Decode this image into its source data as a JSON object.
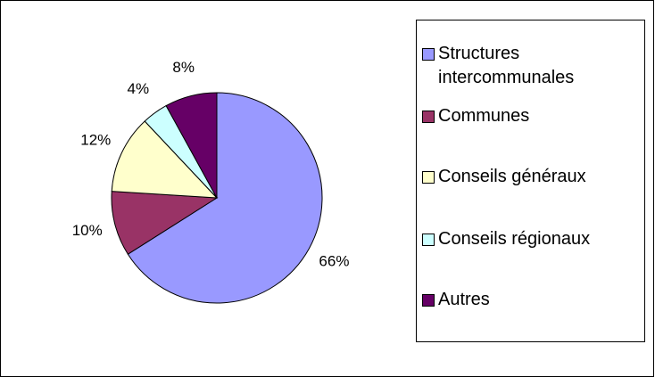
{
  "chart_data": {
    "type": "pie",
    "categories": [
      "Structures intercommunales",
      "Communes",
      "Conseils généraux",
      "Conseils régionaux",
      "Autres"
    ],
    "values": [
      66,
      10,
      12,
      4,
      8
    ],
    "value_labels": [
      "66%",
      "10%",
      "12%",
      "4%",
      "8%"
    ],
    "colors": [
      "#9999ff",
      "#993366",
      "#ffffcc",
      "#ccffff",
      "#660066"
    ],
    "legend": "right"
  }
}
